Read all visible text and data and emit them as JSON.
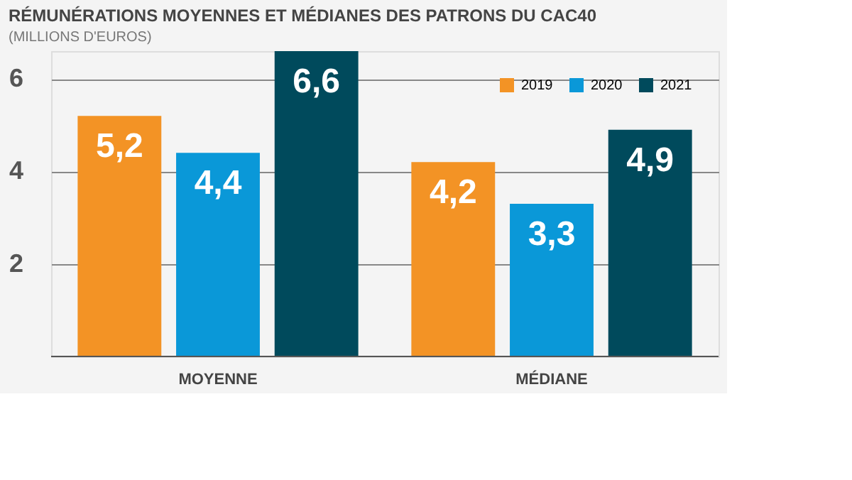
{
  "chart_data": {
    "type": "bar",
    "title": "RÉMUNÉRATIONS MOYENNES ET MÉDIANES DES PATRONS DU CAC40",
    "subtitle": "(MILLIONS D'EUROS)",
    "categories": [
      "MOYENNE",
      "MÉDIANE"
    ],
    "series": [
      {
        "name": "2019",
        "color": "#f39325",
        "values": [
          5.2,
          4.2
        ],
        "value_labels": [
          "5,2",
          "4,2"
        ]
      },
      {
        "name": "2020",
        "color": "#0a98d8",
        "values": [
          4.4,
          3.3
        ],
        "value_labels": [
          "4,4",
          "3,3"
        ]
      },
      {
        "name": "2021",
        "color": "#004a5c",
        "values": [
          6.6,
          4.9
        ],
        "value_labels": [
          "6,6",
          "4,9"
        ]
      }
    ],
    "ylim": [
      0,
      6.6
    ],
    "yticks": [
      2,
      4,
      6
    ],
    "grid": "y",
    "legend": "top right"
  }
}
